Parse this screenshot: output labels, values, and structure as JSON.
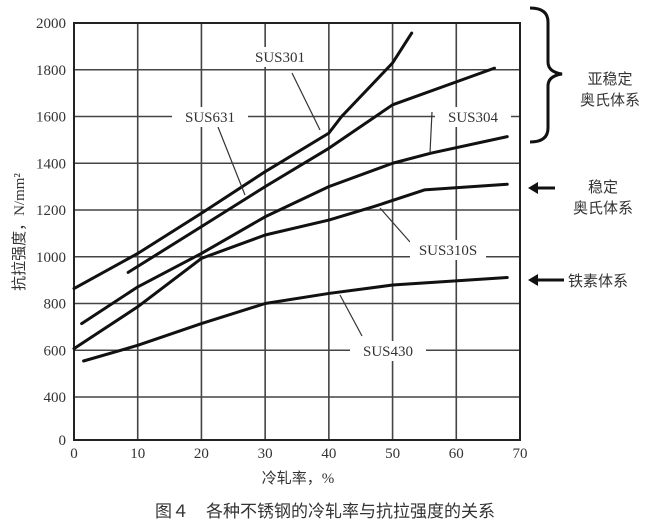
{
  "chart_data": {
    "type": "line",
    "title": "",
    "caption": "图４　各种不锈钢的冷轧率与抗拉强度的关系",
    "xlabel": "冷轧率，%",
    "ylabel": "抗拉强度，N/mm²",
    "xlim": [
      0,
      70
    ],
    "xticks": [
      0,
      10,
      20,
      30,
      40,
      50,
      60,
      70
    ],
    "yticks": [
      0,
      400,
      600,
      800,
      1000,
      1200,
      1400,
      1600,
      1800,
      2000
    ],
    "grid": true,
    "series": [
      {
        "name": "SUS301",
        "x": [
          0,
          10,
          20,
          30,
          40,
          42,
          50,
          53
        ],
        "y": [
          864,
          1014,
          1186,
          1364,
          1529,
          1600,
          1829,
          1957
        ]
      },
      {
        "name": "SUS631",
        "x": [
          8.5,
          20,
          30,
          40,
          50,
          66
        ],
        "y": [
          933,
          1129,
          1300,
          1464,
          1650,
          1807
        ]
      },
      {
        "name": "SUS304",
        "x": [
          1.2,
          10,
          20,
          30,
          40,
          50,
          56,
          68
        ],
        "y": [
          714,
          871,
          1014,
          1171,
          1300,
          1400,
          1443,
          1514
        ]
      },
      {
        "name": "SUS310S",
        "x": [
          0,
          10,
          20,
          30,
          40,
          47,
          55,
          68
        ],
        "y": [
          607,
          786,
          993,
          1093,
          1157,
          1214,
          1286,
          1310
        ]
      },
      {
        "name": "SUS430",
        "x": [
          1.5,
          10,
          20,
          30,
          40,
          50,
          68
        ],
        "y": [
          554,
          621,
          714,
          800,
          843,
          879,
          911
        ]
      }
    ],
    "annotations": {
      "metastable": [
        "亚稳定",
        "奥氏体系"
      ],
      "stable": [
        "稳定",
        "奥氏体系"
      ],
      "ferritic": "铁素体系"
    }
  }
}
